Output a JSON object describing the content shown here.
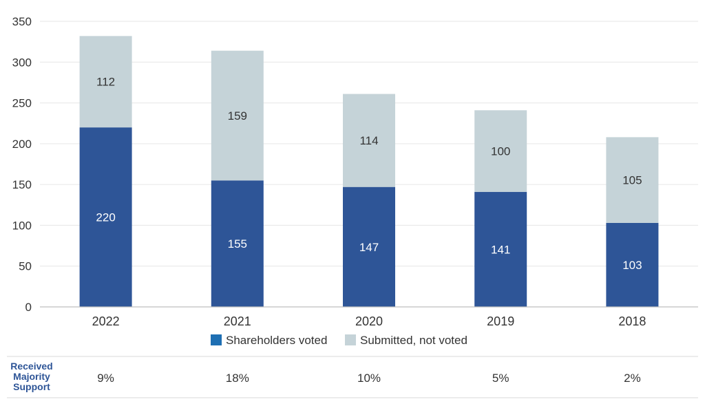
{
  "chart_data": {
    "type": "bar",
    "stacked": true,
    "categories": [
      "2022",
      "2021",
      "2020",
      "2019",
      "2018"
    ],
    "series": [
      {
        "name": "Shareholders voted",
        "values": [
          220,
          155,
          147,
          141,
          103
        ],
        "color": "#2e5597",
        "label_color": "#ffffff"
      },
      {
        "name": "Submitted, not voted",
        "values": [
          112,
          159,
          114,
          100,
          105
        ],
        "color": "#c5d3d8",
        "label_color": "#333333"
      }
    ],
    "ylim": [
      0,
      350
    ],
    "yticks": [
      0,
      50,
      100,
      150,
      200,
      250,
      300,
      350
    ],
    "grid": true,
    "legend": "bottom",
    "legend_swatch_colors": [
      "#1e6fb3",
      "#c5d3d8"
    ]
  },
  "majority_support": {
    "label_lines": [
      "Received",
      "Majority",
      "Support"
    ],
    "values": [
      "9%",
      "18%",
      "10%",
      "5%",
      "2%"
    ]
  }
}
